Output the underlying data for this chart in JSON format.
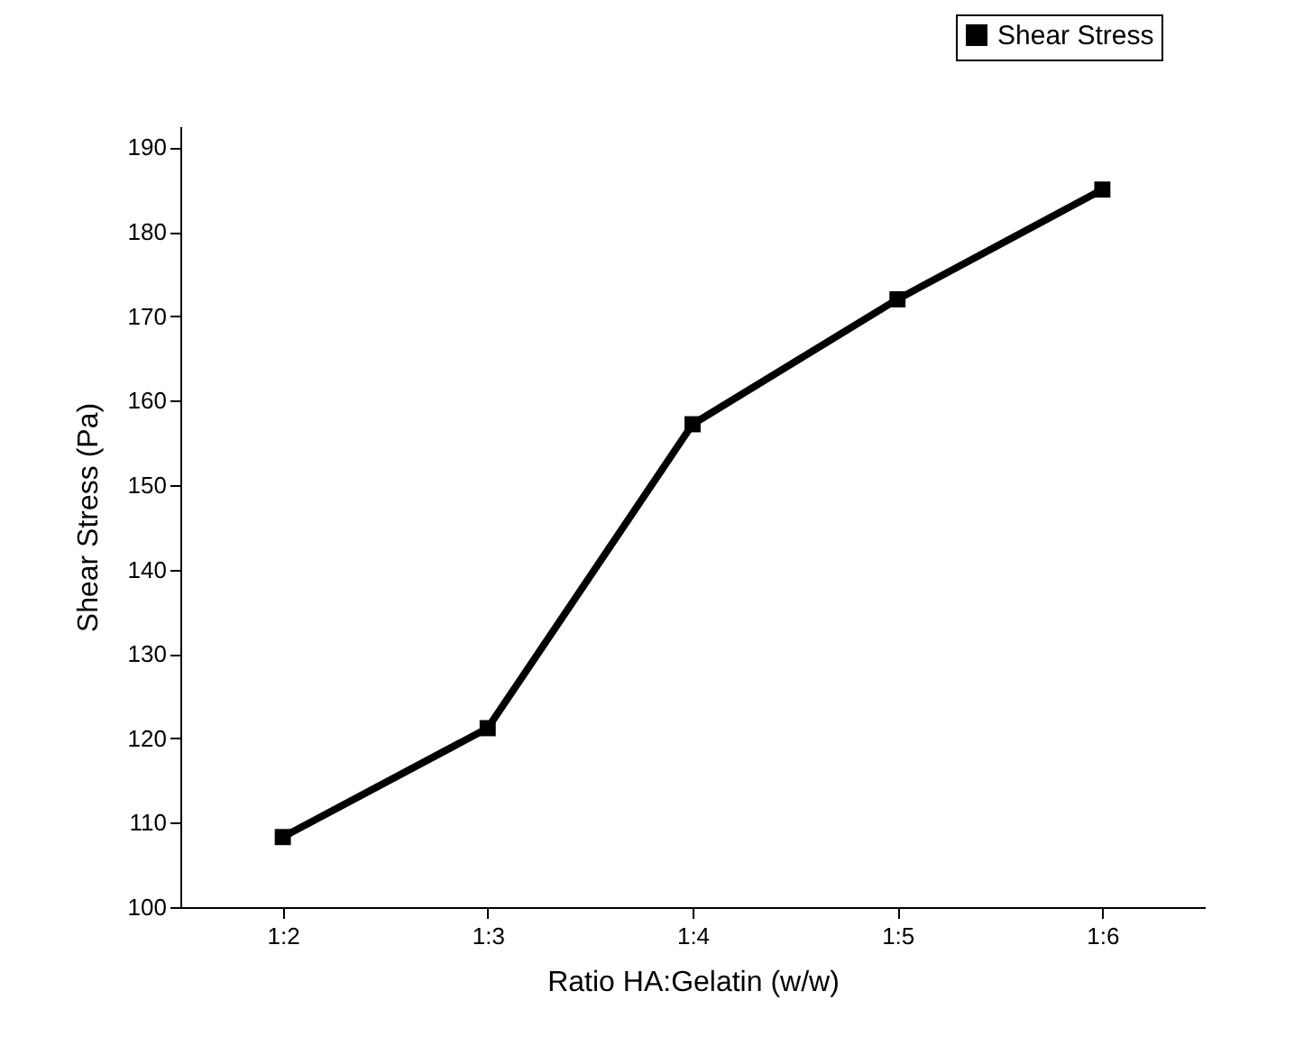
{
  "chart_data": {
    "type": "line",
    "xlabel": "Ratio HA:Gelatin (w/w)",
    "ylabel": "Shear Stress (Pa)",
    "categories": [
      "1:2",
      "1:3",
      "1:4",
      "1:5",
      "1:6"
    ],
    "series": [
      {
        "name": "Shear Stress",
        "color": "#000000",
        "values": [
          108.3,
          121.2,
          157.2,
          172.0,
          185.0
        ]
      }
    ],
    "ylim": [
      100,
      192.5
    ],
    "yticks": [
      100,
      110,
      120,
      130,
      140,
      150,
      160,
      170,
      180,
      190
    ],
    "marker": "square",
    "line_style": "solid",
    "legend": "top right",
    "grid": false
  }
}
